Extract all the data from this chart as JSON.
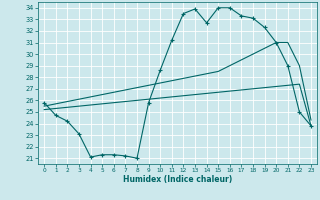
{
  "xlabel": "Humidex (Indice chaleur)",
  "bg_color": "#cce8ec",
  "grid_color": "#b0d8de",
  "line_color": "#006666",
  "xlim": [
    -0.5,
    23.5
  ],
  "ylim": [
    20.5,
    34.5
  ],
  "yticks": [
    21,
    22,
    23,
    24,
    25,
    26,
    27,
    28,
    29,
    30,
    31,
    32,
    33,
    34
  ],
  "xticks": [
    0,
    1,
    2,
    3,
    4,
    5,
    6,
    7,
    8,
    9,
    10,
    11,
    12,
    13,
    14,
    15,
    16,
    17,
    18,
    19,
    20,
    21,
    22,
    23
  ],
  "line1_x": [
    0,
    1,
    2,
    3,
    4,
    5,
    6,
    7,
    8,
    9,
    10,
    11,
    12,
    13,
    14,
    15,
    16,
    17,
    18,
    19,
    20,
    21,
    22,
    23
  ],
  "line1_y": [
    25.8,
    24.7,
    24.2,
    23.1,
    21.1,
    21.3,
    21.3,
    21.2,
    21.0,
    25.8,
    28.6,
    31.2,
    33.5,
    33.9,
    32.7,
    34.0,
    34.0,
    33.3,
    33.1,
    32.3,
    31.0,
    29.0,
    25.0,
    23.8
  ],
  "line2_x": [
    0,
    1,
    2,
    3,
    4,
    5,
    6,
    7,
    8,
    9,
    10,
    11,
    12,
    13,
    14,
    15,
    16,
    17,
    18,
    19,
    20,
    21,
    22,
    23
  ],
  "line2_y": [
    25.5,
    25.7,
    25.9,
    26.1,
    26.3,
    26.5,
    26.7,
    26.9,
    27.1,
    27.3,
    27.5,
    27.7,
    27.9,
    28.1,
    28.3,
    28.5,
    29.0,
    29.5,
    30.0,
    30.5,
    31.0,
    31.0,
    29.0,
    24.3
  ],
  "line3_x": [
    0,
    1,
    2,
    3,
    4,
    5,
    6,
    7,
    8,
    9,
    10,
    11,
    12,
    13,
    14,
    15,
    16,
    17,
    18,
    19,
    20,
    21,
    22,
    23
  ],
  "line3_y": [
    25.2,
    25.3,
    25.4,
    25.5,
    25.6,
    25.7,
    25.8,
    25.9,
    26.0,
    26.1,
    26.2,
    26.3,
    26.4,
    26.5,
    26.6,
    26.7,
    26.8,
    26.9,
    27.0,
    27.1,
    27.2,
    27.3,
    27.4,
    23.8
  ]
}
